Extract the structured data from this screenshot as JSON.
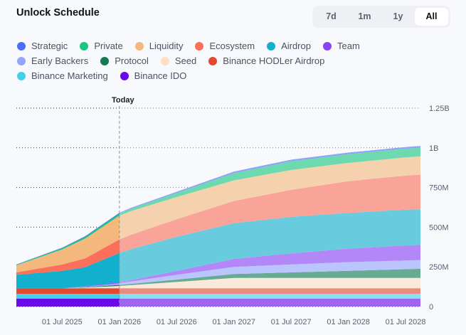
{
  "header": {
    "title": "Unlock Schedule",
    "ranges": [
      {
        "label": "7d",
        "active": false
      },
      {
        "label": "1m",
        "active": false
      },
      {
        "label": "1y",
        "active": false
      },
      {
        "label": "All",
        "active": true
      }
    ]
  },
  "legend_rows": [
    [
      0,
      1,
      2,
      3,
      4,
      5
    ],
    [
      6,
      7,
      8,
      9
    ],
    [
      10,
      11
    ]
  ],
  "chart_data": {
    "type": "area",
    "stacked": true,
    "title": "Unlock Schedule",
    "xlabel": "",
    "ylabel": "",
    "today_label": "Today",
    "today_x": 0.75,
    "x_tick_labels": [
      "01 Jul 2025",
      "01 Jan 2026",
      "01 Jul 2026",
      "01 Jan 2027",
      "01 Jul 2027",
      "01 Jan 2028",
      "01 Jul 2028"
    ],
    "x_ticks": [
      0.25,
      0.75,
      1.25,
      1.75,
      2.25,
      2.75,
      3.25
    ],
    "x": [
      -0.15,
      0.25,
      0.45,
      0.75,
      0.85,
      1.25,
      1.75,
      2.25,
      2.75,
      3.25,
      3.38
    ],
    "xlim": [
      -0.15,
      3.38
    ],
    "y_tick_labels": [
      "0",
      "250M",
      "500M",
      "750M",
      "1B",
      "1.25B"
    ],
    "y_ticks": [
      0,
      250,
      500,
      750,
      1000,
      1250
    ],
    "ylim": [
      0,
      1250
    ],
    "y_unit": "M",
    "grid": true,
    "legend_position": "top-left",
    "series": [
      {
        "name": "Binance IDO",
        "color": "#6a0ae8",
        "values": [
          50,
          50,
          50,
          50,
          50,
          50,
          50,
          50,
          50,
          50,
          50
        ]
      },
      {
        "name": "Binance Marketing",
        "color": "#43d0e8",
        "values": [
          30,
          30,
          30,
          30,
          30,
          30,
          30,
          30,
          30,
          30,
          30
        ]
      },
      {
        "name": "Binance HODLer Airdrop",
        "color": "#e2492f",
        "values": [
          35,
          35,
          35,
          35,
          35,
          35,
          35,
          35,
          35,
          35,
          35
        ]
      },
      {
        "name": "Seed",
        "color": "#fcdfc4",
        "values": [
          0,
          0,
          5,
          15,
          20,
          40,
          65,
          65,
          65,
          65,
          65
        ]
      },
      {
        "name": "Protocol",
        "color": "#137a52",
        "values": [
          0,
          0,
          2,
          6,
          8,
          15,
          25,
          35,
          45,
          55,
          58
        ]
      },
      {
        "name": "Early Backers",
        "color": "#93a5fc",
        "values": [
          0,
          0,
          4,
          12,
          15,
          30,
          45,
          50,
          55,
          55,
          55
        ]
      },
      {
        "name": "Team",
        "color": "#8b42f6",
        "values": [
          0,
          0,
          2,
          5,
          8,
          25,
          50,
          70,
          85,
          95,
          95
        ]
      },
      {
        "name": "Airdrop",
        "color": "#12b0cc",
        "values": [
          85,
          110,
          120,
          185,
          195,
          215,
          225,
          230,
          225,
          225,
          225
        ]
      },
      {
        "name": "Ecosystem",
        "color": "#fc6f5b",
        "values": [
          15,
          40,
          55,
          85,
          90,
          110,
          140,
          170,
          200,
          215,
          218
        ]
      },
      {
        "name": "Liquidity",
        "color": "#f5b87c",
        "values": [
          45,
          95,
          125,
          150,
          150,
          140,
          130,
          125,
          115,
          115,
          115
        ]
      },
      {
        "name": "Private",
        "color": "#18c77e",
        "values": [
          3,
          8,
          10,
          12,
          15,
          25,
          45,
          55,
          55,
          55,
          55
        ]
      },
      {
        "name": "Strategic",
        "color": "#4d6cf7",
        "values": [
          2,
          3,
          4,
          5,
          6,
          8,
          10,
          10,
          10,
          10,
          10
        ]
      }
    ],
    "legend_order": [
      "Strategic",
      "Private",
      "Liquidity",
      "Ecosystem",
      "Airdrop",
      "Team",
      "Early Backers",
      "Protocol",
      "Seed",
      "Binance HODLer Airdrop",
      "Binance Marketing",
      "Binance IDO"
    ]
  }
}
